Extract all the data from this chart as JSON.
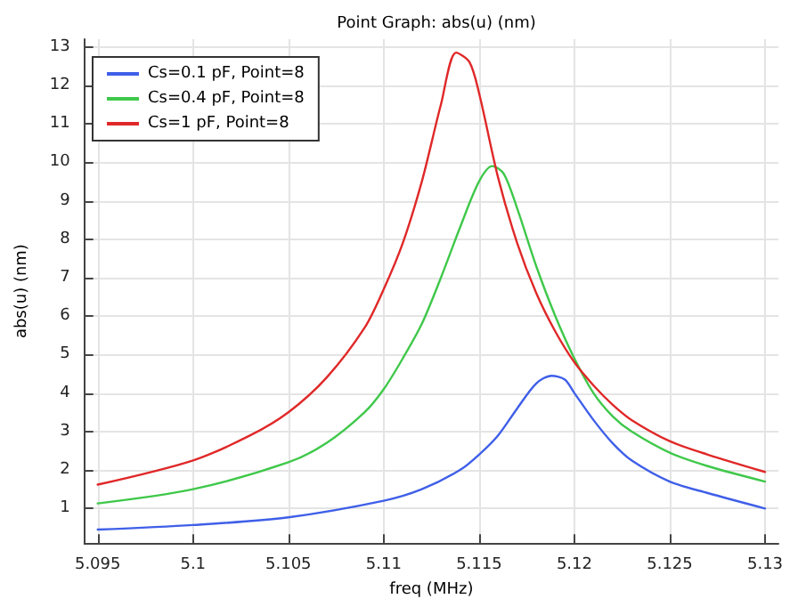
{
  "chart_data": {
    "type": "line",
    "title": "Point Graph: abs(u) (nm)",
    "xlabel": "freq (MHz)",
    "ylabel": "abs(u) (nm)",
    "xlim": [
      5.0943,
      5.1307
    ],
    "xticks": [
      5.095,
      5.1,
      5.105,
      5.11,
      5.115,
      5.12,
      5.125,
      5.13
    ],
    "ylim": [
      0.1,
      13.2
    ],
    "yticks": [
      1,
      2,
      3,
      4,
      5,
      6,
      7,
      8,
      9,
      10,
      11,
      12,
      13
    ],
    "grid": true,
    "legend": "top left",
    "marker": "none",
    "line_style": "solid",
    "series": [
      {
        "name": "Cs=0.1 pF, Point=8",
        "color": "#3f5fe8",
        "x": [
          5.095,
          5.1,
          5.105,
          5.11,
          5.112,
          5.114,
          5.115,
          5.116,
          5.117,
          5.118,
          5.1188,
          5.1195,
          5.12,
          5.121,
          5.122,
          5.123,
          5.125,
          5.127,
          5.13
        ],
        "values": [
          0.45,
          0.57,
          0.77,
          1.2,
          1.5,
          2.0,
          2.4,
          2.9,
          3.6,
          4.25,
          4.45,
          4.35,
          4.0,
          3.3,
          2.7,
          2.25,
          1.7,
          1.4,
          1.0
        ]
      },
      {
        "name": "Cs=0.4 pF, Point=8",
        "color": "#3fc84a",
        "x": [
          5.095,
          5.1,
          5.105,
          5.107,
          5.109,
          5.11,
          5.111,
          5.112,
          5.113,
          5.114,
          5.115,
          5.1157,
          5.1163,
          5.117,
          5.118,
          5.119,
          5.12,
          5.121,
          5.122,
          5.123,
          5.125,
          5.127,
          5.13
        ],
        "values": [
          1.13,
          1.5,
          2.2,
          2.7,
          3.5,
          4.1,
          4.9,
          5.8,
          7.0,
          8.3,
          9.5,
          9.9,
          9.7,
          8.8,
          7.3,
          6.0,
          4.9,
          4.0,
          3.4,
          3.0,
          2.45,
          2.1,
          1.7
        ]
      },
      {
        "name": "Cs=1 pF, Point=8",
        "color": "#e02828",
        "x": [
          5.095,
          5.1,
          5.103,
          5.105,
          5.107,
          5.109,
          5.11,
          5.111,
          5.112,
          5.113,
          5.1138,
          5.1145,
          5.115,
          5.116,
          5.117,
          5.118,
          5.119,
          5.12,
          5.121,
          5.122,
          5.123,
          5.125,
          5.127,
          5.13
        ],
        "values": [
          1.62,
          2.25,
          2.9,
          3.5,
          4.4,
          5.7,
          6.7,
          7.9,
          9.5,
          11.5,
          12.85,
          12.6,
          11.8,
          9.6,
          7.9,
          6.6,
          5.6,
          4.8,
          4.2,
          3.7,
          3.3,
          2.75,
          2.4,
          1.95
        ]
      }
    ]
  }
}
